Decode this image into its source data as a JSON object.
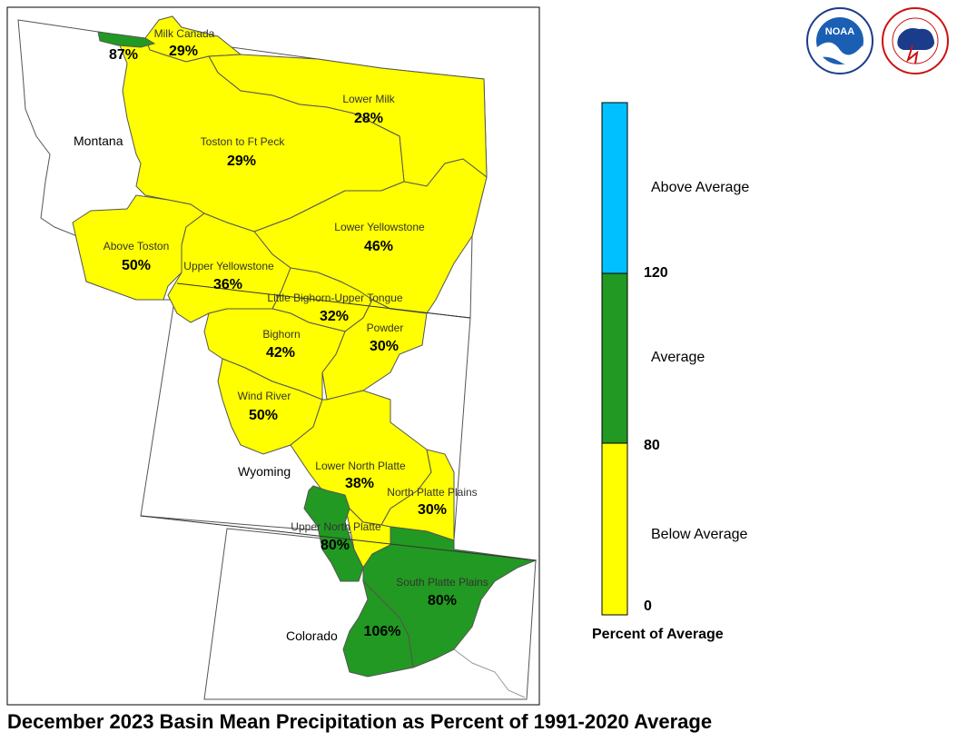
{
  "title": "December 2023 Basin Mean Precipitation as Percent of 1991-2020 Average",
  "states": [
    "Montana",
    "Wyoming",
    "Colorado"
  ],
  "basins": [
    {
      "name": "Milk Canada",
      "value": "29%",
      "category": "below"
    },
    {
      "name": "",
      "value": "87%",
      "category": "average"
    },
    {
      "name": "Lower Milk",
      "value": "28%",
      "category": "below"
    },
    {
      "name": "Toston to Ft Peck",
      "value": "29%",
      "category": "below"
    },
    {
      "name": "Above Toston",
      "value": "50%",
      "category": "below"
    },
    {
      "name": "Lower Yellowstone",
      "value": "46%",
      "category": "below"
    },
    {
      "name": "Upper Yellowstone",
      "value": "36%",
      "category": "below"
    },
    {
      "name": "Little Bighorn-Upper Tongue",
      "value": "32%",
      "category": "below"
    },
    {
      "name": "Bighorn",
      "value": "42%",
      "category": "below"
    },
    {
      "name": "Powder",
      "value": "30%",
      "category": "below"
    },
    {
      "name": "Wind River",
      "value": "50%",
      "category": "below"
    },
    {
      "name": "Lower North Platte",
      "value": "38%",
      "category": "below"
    },
    {
      "name": "North Platte Plains",
      "value": "30%",
      "category": "below"
    },
    {
      "name": "Upper North Platte",
      "value": "80%",
      "category": "average"
    },
    {
      "name": "South Platte Plains",
      "value": "80%",
      "category": "average"
    },
    {
      "name": "",
      "value": "106%",
      "category": "average"
    }
  ],
  "legend": {
    "title": "Percent of Average",
    "categories": [
      {
        "label": "Above Average",
        "color": "#00c0ff"
      },
      {
        "label": "Average",
        "color": "#229922"
      },
      {
        "label": "Below Average",
        "color": "#ffff00"
      }
    ],
    "ticks": [
      "120",
      "80",
      "0"
    ]
  },
  "colors": {
    "below": "#ffff00",
    "average": "#229922",
    "above": "#00c0ff",
    "outline": "#555555"
  },
  "logos": [
    {
      "name": "noaa-logo",
      "text": "NOAA"
    },
    {
      "name": "nws-logo",
      "text": ""
    }
  ]
}
